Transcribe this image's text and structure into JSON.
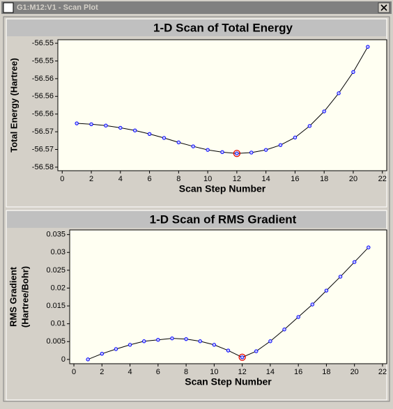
{
  "window": {
    "title": "G1:M12:V1 - Scan Plot"
  },
  "chart_data": [
    {
      "type": "line",
      "title": "1-D Scan of Total Energy",
      "xlabel": "Scan Step Number",
      "ylabel": "Total Energy (Hartree)",
      "x": [
        1,
        2,
        3,
        4,
        5,
        6,
        7,
        8,
        9,
        10,
        11,
        12,
        13,
        14,
        15,
        16,
        17,
        18,
        19,
        20,
        21
      ],
      "series": [
        {
          "color": "#0000ff",
          "values": [
            -56.5661,
            -56.5663,
            -56.5666,
            -56.5671,
            -56.5677,
            -56.5685,
            -56.5694,
            -56.5704,
            -56.5713,
            -56.5721,
            -56.5726,
            -56.5729,
            -56.5727,
            -56.5721,
            -56.571,
            -56.5693,
            -56.5667,
            -56.5634,
            -56.5593,
            -56.5545,
            -56.5488
          ]
        }
      ],
      "highlight_x": 12,
      "xlim": [
        -0.3,
        22.3
      ],
      "xticks": [
        0,
        2,
        4,
        6,
        8,
        10,
        12,
        14,
        16,
        18,
        20,
        22
      ],
      "ylim": [
        -56.5768,
        -56.5472
      ],
      "yticks": [
        {
          "value": -56.548,
          "label": "-56.55"
        },
        {
          "value": -56.552,
          "label": "-56.55"
        },
        {
          "value": -56.556,
          "label": "-56.56"
        },
        {
          "value": -56.56,
          "label": "-56.56"
        },
        {
          "value": -56.564,
          "label": "-56.56"
        },
        {
          "value": -56.568,
          "label": "-56.57"
        },
        {
          "value": -56.572,
          "label": "-56.57"
        },
        {
          "value": -56.576,
          "label": "-56.58"
        }
      ],
      "grid": false
    },
    {
      "type": "line",
      "title": "1-D Scan of RMS Gradient",
      "xlabel": "Scan Step Number",
      "ylabel": [
        "RMS Gradient",
        "(Hartree/Bohr)"
      ],
      "x": [
        1,
        2,
        3,
        4,
        5,
        6,
        7,
        8,
        9,
        10,
        11,
        12,
        13,
        14,
        15,
        16,
        17,
        18,
        19,
        20,
        21
      ],
      "series": [
        {
          "color": "#0000ff",
          "values": [
            0,
            0.0016,
            0.0029,
            0.0041,
            0.0051,
            0.0055,
            0.0059,
            0.0057,
            0.0051,
            0.0041,
            0.0025,
            0.0006,
            0.0023,
            0.0051,
            0.0084,
            0.0119,
            0.0154,
            0.0193,
            0.0232,
            0.0273,
            0.0314
          ]
        }
      ],
      "highlight_x": 12,
      "xlim": [
        -0.3,
        22.3
      ],
      "xticks": [
        0,
        2,
        4,
        6,
        8,
        10,
        12,
        14,
        16,
        18,
        20,
        22
      ],
      "ylim": [
        -0.0012,
        0.0363
      ],
      "yticks": [
        0,
        0.005,
        0.01,
        0.015,
        0.02,
        0.025,
        0.03,
        0.035
      ],
      "grid": false
    }
  ]
}
